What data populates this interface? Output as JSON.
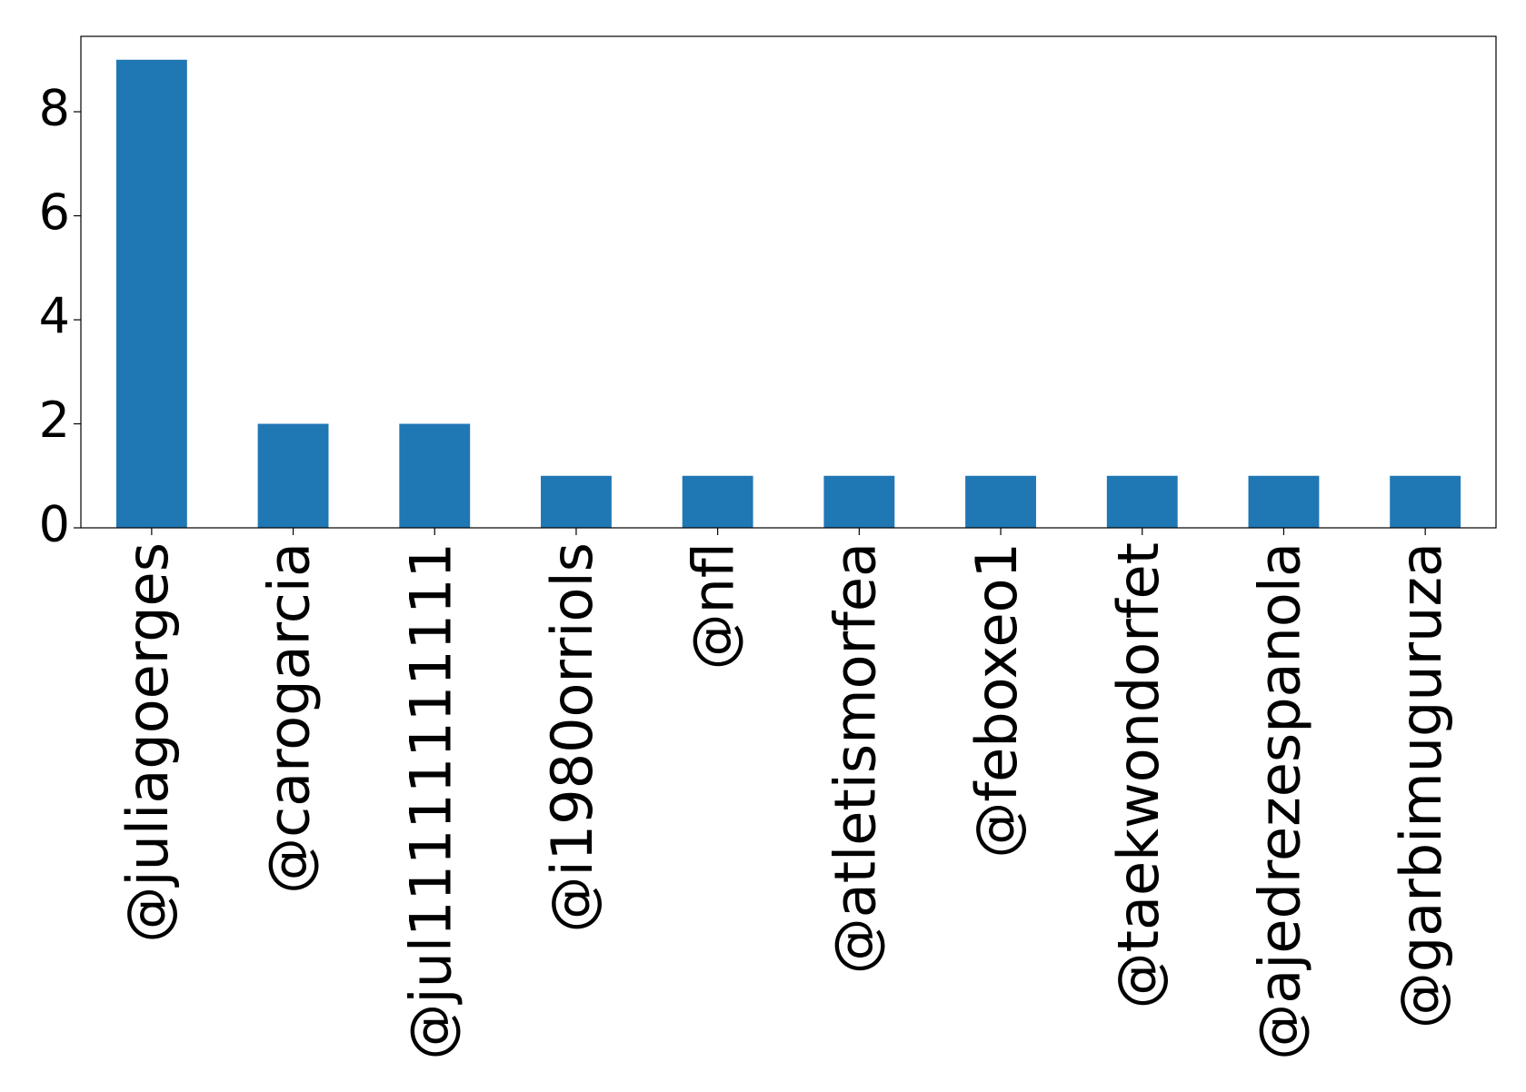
{
  "chart_data": {
    "type": "bar",
    "categories": [
      "@juliagoerges",
      "@carogarcia",
      "@jul11111111111",
      "@i1980orriols",
      "@nfl",
      "@atletismorfea",
      "@feboxeo1",
      "@taekwondorfet",
      "@ajedrezespanola",
      "@garbimuguruza"
    ],
    "values": [
      9,
      2,
      2,
      1,
      1,
      1,
      1,
      1,
      1,
      1
    ],
    "color": "#1f77b4",
    "ylim": [
      0,
      9.45
    ],
    "yticks": [
      0,
      2,
      4,
      6,
      8
    ],
    "grid": false
  }
}
